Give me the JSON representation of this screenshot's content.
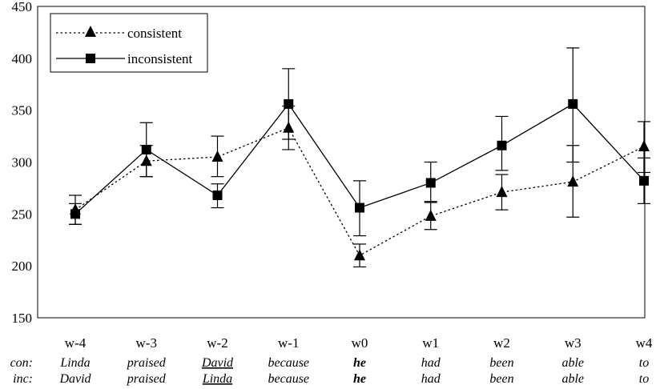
{
  "chart_data": {
    "type": "line",
    "title": "",
    "xlabel": "",
    "ylabel": "",
    "ylim": [
      150,
      450
    ],
    "yticks": [
      150,
      200,
      250,
      300,
      350,
      400,
      450
    ],
    "categories": [
      "w-4",
      "w-3",
      "w-2",
      "w-1",
      "w0",
      "w1",
      "w2",
      "w3",
      "w4"
    ],
    "series": [
      {
        "name": "consistent",
        "marker": "triangle",
        "line": "dotted",
        "values": [
          254,
          301,
          305,
          333,
          210,
          248,
          271,
          281,
          315
        ],
        "error_low": [
          240,
          286,
          286,
          312,
          199,
          235,
          254,
          247,
          290
        ],
        "error_high": [
          268,
          316,
          325,
          354,
          221,
          261,
          288,
          316,
          339
        ]
      },
      {
        "name": "inconsistent",
        "marker": "square",
        "line": "solid",
        "values": [
          250,
          312,
          268,
          356,
          256,
          280,
          316,
          356,
          282
        ],
        "error_low": [
          240,
          286,
          256,
          322,
          229,
          262,
          292,
          300,
          260
        ],
        "error_high": [
          260,
          338,
          279,
          390,
          282,
          300,
          344,
          410,
          304
        ]
      }
    ],
    "legend_position": "top-left",
    "grid": false,
    "word_rows": [
      {
        "label": "con:",
        "words": [
          {
            "text": "Linda"
          },
          {
            "text": "praised"
          },
          {
            "text": "David",
            "underline": true
          },
          {
            "text": "because"
          },
          {
            "text": "he",
            "bold": true
          },
          {
            "text": "had"
          },
          {
            "text": "been"
          },
          {
            "text": "able"
          },
          {
            "text": "to"
          }
        ]
      },
      {
        "label": "inc:",
        "words": [
          {
            "text": "David"
          },
          {
            "text": "praised"
          },
          {
            "text": "Linda",
            "underline": true
          },
          {
            "text": "because"
          },
          {
            "text": "he",
            "bold": true
          },
          {
            "text": "had"
          },
          {
            "text": "been"
          },
          {
            "text": "able"
          },
          {
            "text": "to"
          }
        ]
      }
    ]
  }
}
